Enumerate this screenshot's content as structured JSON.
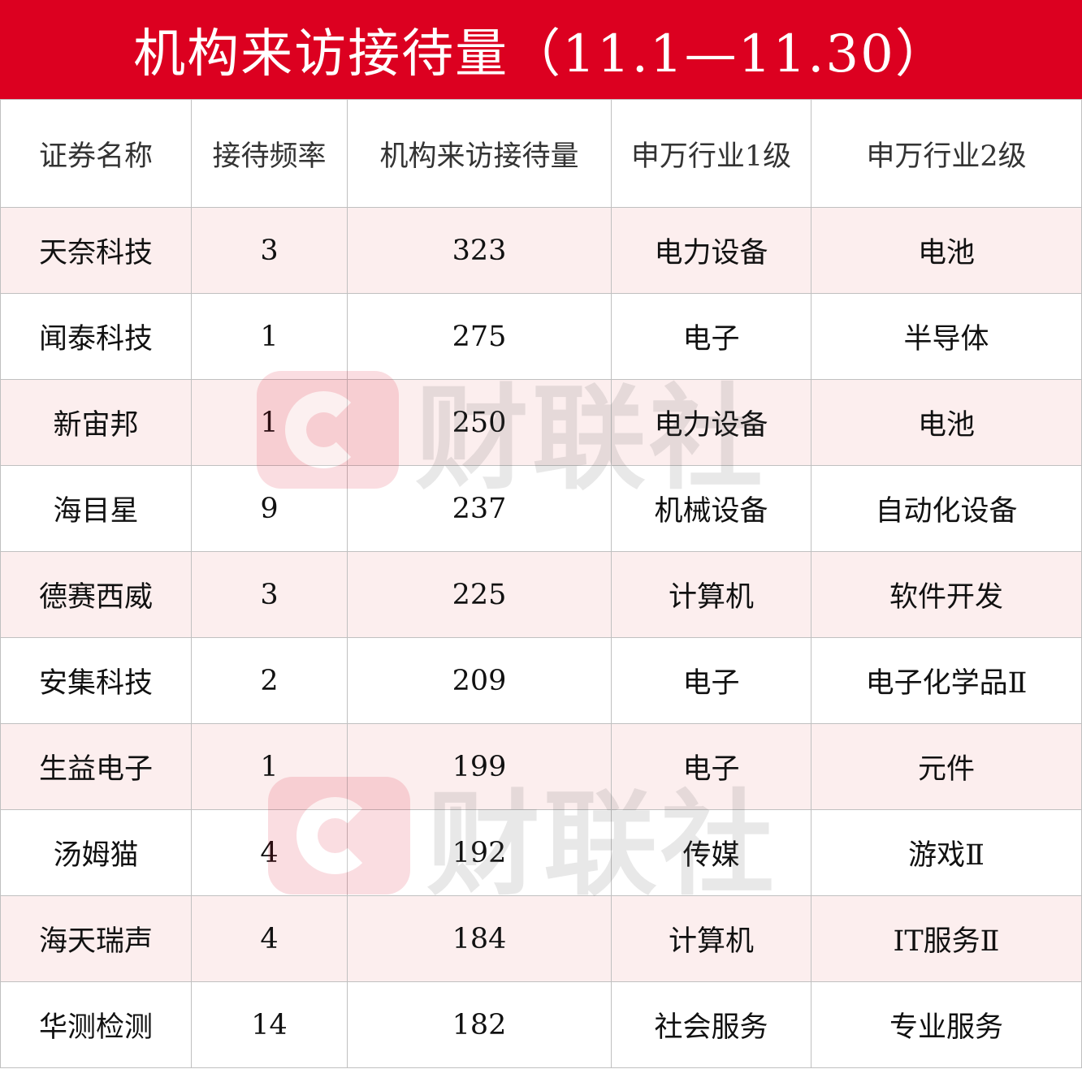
{
  "title": "机构来访接待量（11.1—11.30）",
  "watermark": "财联社",
  "colors": {
    "title_bg": "#DC0020",
    "odd_row_bg": "#FCEEEE",
    "grid": "#C0C0C0"
  },
  "table": {
    "headers": [
      "证券名称",
      "接待频率",
      "机构来访接待量",
      "申万行业1级",
      "申万行业2级"
    ],
    "rows": [
      [
        "天奈科技",
        "3",
        "323",
        "电力设备",
        "电池"
      ],
      [
        "闻泰科技",
        "1",
        "275",
        "电子",
        "半导体"
      ],
      [
        "新宙邦",
        "1",
        "250",
        "电力设备",
        "电池"
      ],
      [
        "海目星",
        "9",
        "237",
        "机械设备",
        "自动化设备"
      ],
      [
        "德赛西威",
        "3",
        "225",
        "计算机",
        "软件开发"
      ],
      [
        "安集科技",
        "2",
        "209",
        "电子",
        "电子化学品Ⅱ"
      ],
      [
        "生益电子",
        "1",
        "199",
        "电子",
        "元件"
      ],
      [
        "汤姆猫",
        "4",
        "192",
        "传媒",
        "游戏Ⅱ"
      ],
      [
        "海天瑞声",
        "4",
        "184",
        "计算机",
        "IT服务Ⅱ"
      ],
      [
        "华测检测",
        "14",
        "182",
        "社会服务",
        "专业服务"
      ]
    ]
  }
}
